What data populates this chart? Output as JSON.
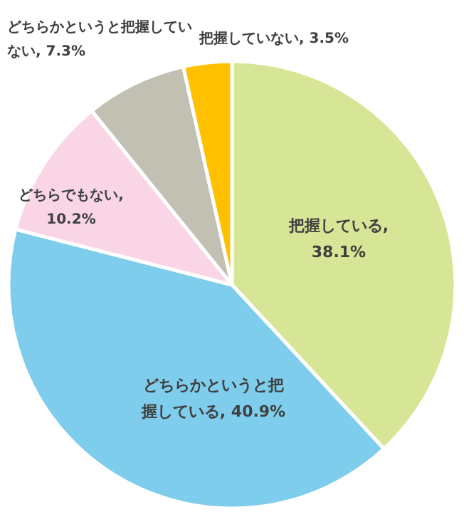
{
  "chart_data": {
    "type": "pie",
    "categories": [
      "把握している",
      "どちらかというと把握している",
      "どちらでもない",
      "どちらかというと把握していない",
      "把握していない"
    ],
    "values": [
      38.1,
      40.9,
      10.2,
      7.3,
      3.5
    ],
    "colors": [
      "#d7e597",
      "#7ecdec",
      "#f9d5e6",
      "#c2c0b2",
      "#ffc000"
    ],
    "value_labels": [
      ", 38.1%",
      ", 40.9%",
      ", 10.2%",
      ", 7.3%",
      ", 3.5%"
    ]
  }
}
